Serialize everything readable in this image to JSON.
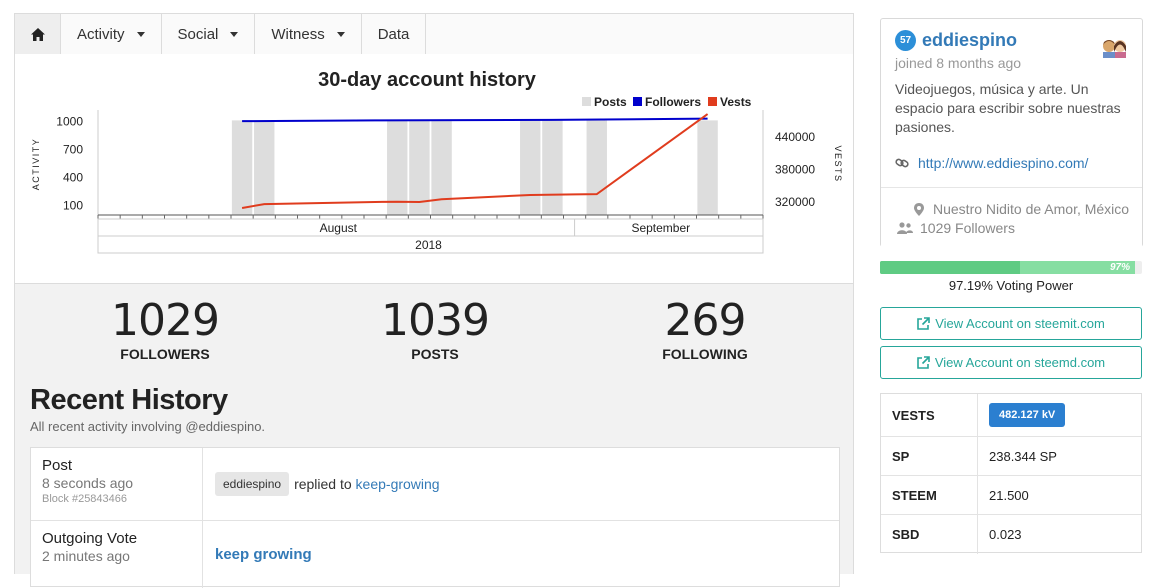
{
  "nav": {
    "home_icon": "home-icon",
    "items": [
      {
        "label": "Activity",
        "dropdown": true
      },
      {
        "label": "Social",
        "dropdown": true
      },
      {
        "label": "Witness",
        "dropdown": true
      },
      {
        "label": "Data",
        "dropdown": false
      }
    ]
  },
  "chart_data": {
    "type": "bar",
    "title": "30-day account history",
    "legend": [
      "Posts",
      "Followers",
      "Vests"
    ],
    "legend_placement": "top-right",
    "colors": {
      "posts": "#dddddd",
      "followers": "#0000cc",
      "vests": "#e03c1e"
    },
    "ylabel_left": "ACTIVITY",
    "ylabel_right": "VESTS",
    "left_ticks": [
      100,
      400,
      700,
      1000
    ],
    "right_ticks": [
      320000,
      380000,
      440000
    ],
    "ylim_left": [
      0,
      1100
    ],
    "ylim_right": [
      296000,
      486000
    ],
    "xlabels": [
      "August",
      "September"
    ],
    "xgroup_label": "2018",
    "days": 30,
    "series": [
      {
        "name": "Posts",
        "kind": "bar",
        "points": [
          [
            6.5,
            1000
          ],
          [
            7.5,
            1000
          ],
          [
            13.5,
            1000
          ],
          [
            14.5,
            1000
          ],
          [
            15.5,
            1000
          ],
          [
            19.5,
            1000
          ],
          [
            20.5,
            1000
          ],
          [
            22.5,
            1000
          ],
          [
            27.5,
            1000
          ]
        ]
      },
      {
        "name": "Followers",
        "kind": "line",
        "points": [
          [
            6.5,
            1002
          ],
          [
            12.5,
            1010
          ],
          [
            20.5,
            1016
          ],
          [
            27.5,
            1029
          ]
        ]
      },
      {
        "name": "Vests",
        "kind": "line",
        "points": [
          [
            6.5,
            309000
          ],
          [
            7.5,
            316000
          ],
          [
            12.5,
            320000
          ],
          [
            13.5,
            320500
          ],
          [
            14.5,
            320000
          ],
          [
            15.5,
            325000
          ],
          [
            19.5,
            333000
          ],
          [
            21.5,
            334000
          ],
          [
            22.5,
            334500
          ],
          [
            27.5,
            482127
          ]
        ]
      }
    ]
  },
  "stats": [
    {
      "value": "1029",
      "label": "FOLLOWERS"
    },
    {
      "value": "1039",
      "label": "POSTS"
    },
    {
      "value": "269",
      "label": "FOLLOWING"
    }
  ],
  "recent": {
    "title": "Recent History",
    "subtitle": "All recent activity involving @eddiespino.",
    "rows": [
      {
        "type": "Post",
        "time": "8 seconds ago",
        "block": "Block #25843466",
        "user": "eddiespino",
        "action": "replied to",
        "link": "keep-growing"
      },
      {
        "type": "Outgoing Vote",
        "time": "2 minutes ago",
        "link": "keep growing"
      }
    ]
  },
  "profile": {
    "reputation": "57",
    "username": "eddiespino",
    "joined": "joined 8 months ago",
    "about": "Videojuegos, música y arte. Un espacio para escribir sobre nuestras pasiones.",
    "website": "http://www.eddiespino.com/",
    "location": "Nuestro Nidito de Amor, México",
    "followers": "1029 Followers",
    "icons": {
      "website": "link-icon",
      "location": "map-marker-icon",
      "followers": "users-icon",
      "avatar": "avatar-icon"
    }
  },
  "voting_power": {
    "value": 97.19,
    "pct_label": "97%",
    "text": "97.19% Voting Power",
    "color": "#5fcb83"
  },
  "buttons": {
    "steemit": "View Account on steemit.com",
    "steemd": "View Account on steemd.com",
    "icon": "external-link-icon"
  },
  "wallet": [
    {
      "key": "VESTS",
      "value": "482.127 kV",
      "badge": true
    },
    {
      "key": "SP",
      "value": "238.344 SP"
    },
    {
      "key": "STEEM",
      "value": "21.500"
    },
    {
      "key": "SBD",
      "value": "0.023"
    }
  ]
}
